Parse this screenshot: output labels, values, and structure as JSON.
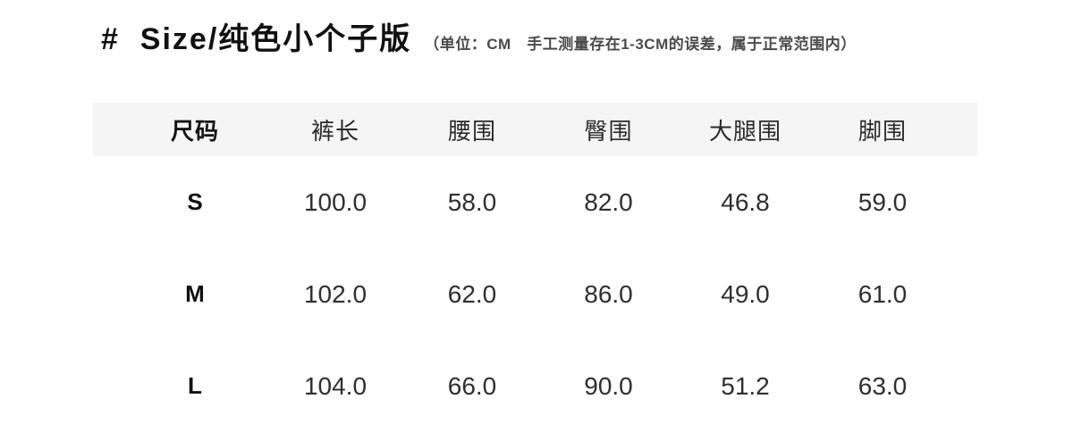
{
  "header": {
    "title": "#  Size/纯色小个子版",
    "note": "（单位：CM　手工测量存在1-3CM的误差，属于正常范围内）"
  },
  "table": {
    "header_bg": "#f5f5f6",
    "columns": [
      "尺码",
      "裤长",
      "腰围",
      "臀围",
      "大腿围",
      "脚围"
    ],
    "rows": [
      {
        "size": "S",
        "values": [
          "100.0",
          "58.0",
          "82.0",
          "46.8",
          "59.0"
        ]
      },
      {
        "size": "M",
        "values": [
          "102.0",
          "62.0",
          "86.0",
          "49.0",
          "61.0"
        ]
      },
      {
        "size": "L",
        "values": [
          "104.0",
          "66.0",
          "90.0",
          "51.2",
          "63.0"
        ]
      }
    ]
  }
}
